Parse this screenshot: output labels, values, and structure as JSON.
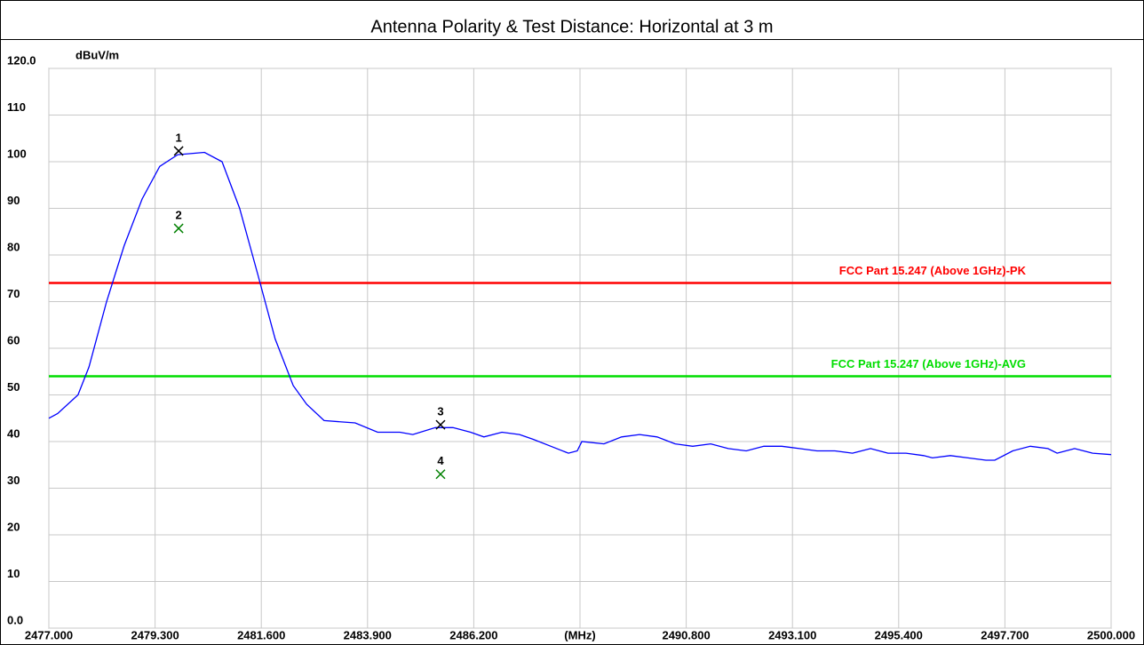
{
  "chart_data": {
    "type": "line",
    "title": "Antenna Polarity & Test Distance: Horizontal at 3 m",
    "y_label": "dBuV/m",
    "xlim": [
      2477,
      2500
    ],
    "ylim": [
      0,
      120
    ],
    "grid": true,
    "xticks": [
      {
        "value": 2477,
        "label": "2477.000"
      },
      {
        "value": 2479.3,
        "label": "2479.300"
      },
      {
        "value": 2481.6,
        "label": "2481.600"
      },
      {
        "value": 2483.9,
        "label": "2483.900"
      },
      {
        "value": 2486.2,
        "label": "2486.200"
      },
      {
        "value": 2488.5,
        "label": "(MHz)"
      },
      {
        "value": 2490.8,
        "label": "2490.800"
      },
      {
        "value": 2493.1,
        "label": "2493.100"
      },
      {
        "value": 2495.4,
        "label": "2495.400"
      },
      {
        "value": 2497.7,
        "label": "2497.700"
      },
      {
        "value": 2500,
        "label": "2500.000"
      }
    ],
    "yticks": [
      {
        "value": 0,
        "label": "0.0"
      },
      10,
      20,
      30,
      40,
      50,
      60,
      70,
      80,
      90,
      100,
      110,
      {
        "value": 120,
        "label": "120.0"
      }
    ],
    "color": "#0000ff",
    "x": [
      2477.0,
      2477.19,
      2477.63,
      2477.87,
      2478.25,
      2478.63,
      2479.02,
      2479.4,
      2479.79,
      2480.37,
      2480.75,
      2481.13,
      2481.52,
      2481.9,
      2482.29,
      2482.58,
      2482.96,
      2483.63,
      2484.12,
      2484.6,
      2484.88,
      2485.37,
      2485.75,
      2486.13,
      2486.42,
      2486.81,
      2487.19,
      2487.48,
      2487.87,
      2488.25,
      2488.44,
      2488.54,
      2489.02,
      2489.4,
      2489.79,
      2490.17,
      2490.56,
      2490.94,
      2491.33,
      2491.71,
      2492.1,
      2492.48,
      2492.87,
      2493.25,
      2493.63,
      2494.02,
      2494.4,
      2494.79,
      2495.17,
      2495.56,
      2495.94,
      2496.13,
      2496.52,
      2496.9,
      2497.29,
      2497.48,
      2497.87,
      2498.25,
      2498.63,
      2498.83,
      2499.21,
      2499.6,
      2500.0
    ],
    "values": [
      45,
      46,
      50,
      56,
      70,
      82,
      92,
      99,
      101.5,
      102,
      100,
      90,
      76,
      62,
      52,
      48,
      44.5,
      44,
      42,
      42,
      41.5,
      43,
      43,
      42,
      41,
      42,
      41.5,
      40.5,
      39,
      37.5,
      38,
      40,
      39.5,
      41,
      41.5,
      41,
      39.5,
      39,
      39.5,
      38.5,
      38,
      39,
      39,
      38.5,
      38,
      38,
      37.5,
      38.5,
      37.5,
      37.5,
      37,
      36.5,
      37,
      36.5,
      36,
      36,
      38,
      39,
      38.5,
      37.5,
      38.5,
      37.5,
      37.2
    ],
    "limits": [
      {
        "label": "FCC Part 15.247 (Above 1GHz)-PK",
        "value": 74,
        "color": "#ff0000"
      },
      {
        "label": "FCC Part 15.247 (Above 1GHz)-AVG",
        "value": 54,
        "color": "#00dd00"
      }
    ],
    "markers": [
      {
        "label": "1",
        "x": 2479.81,
        "value": 102.3,
        "color": "#000000"
      },
      {
        "label": "2",
        "x": 2479.81,
        "value": 85.7,
        "color": "#008000"
      },
      {
        "label": "3",
        "x": 2485.48,
        "value": 43.6,
        "color": "#000000"
      },
      {
        "label": "4",
        "x": 2485.48,
        "value": 33.0,
        "color": "#008000"
      }
    ]
  }
}
